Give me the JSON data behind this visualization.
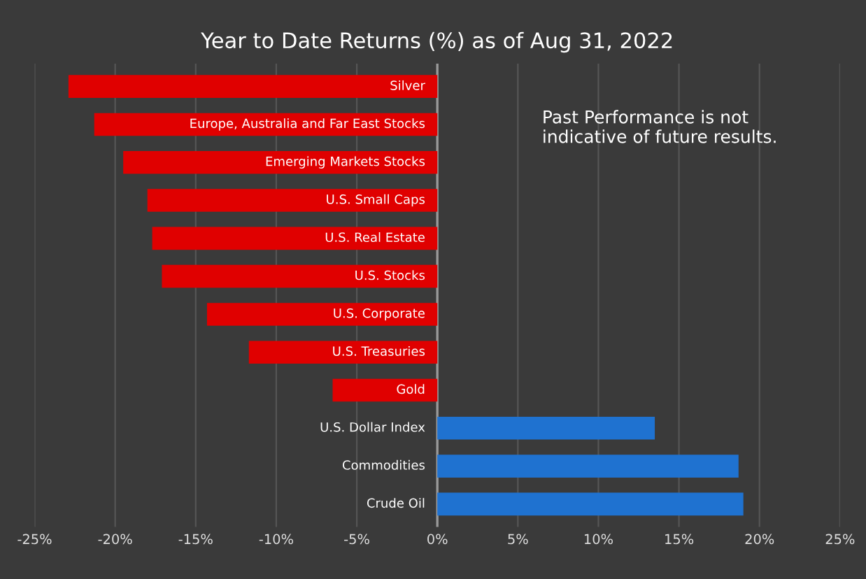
{
  "chart_data": {
    "type": "bar",
    "orientation": "horizontal",
    "title": "Year to Date Returns (%) as of Aug 31, 2022",
    "categories": [
      "Silver",
      "Europe, Australia and Far East Stocks",
      "Emerging Markets Stocks",
      "U.S. Small Caps",
      "U.S. Real Estate",
      "U.S. Stocks",
      "U.S. Corporate",
      "U.S. Treasuries",
      "Gold",
      "U.S. Dollar Index",
      "Commodities",
      "Crude Oil"
    ],
    "values": [
      -22.9,
      -21.3,
      -19.5,
      -18.0,
      -17.7,
      -17.1,
      -14.3,
      -11.7,
      -6.5,
      13.5,
      18.7,
      19.0
    ],
    "colors": [
      "#e00000",
      "#e00000",
      "#e00000",
      "#e00000",
      "#e00000",
      "#e00000",
      "#e00000",
      "#e00000",
      "#e00000",
      "#1f72d0",
      "#1f72d0",
      "#1f72d0"
    ],
    "xlim": [
      -25,
      25
    ],
    "xticks": [
      {
        "value": -25,
        "label": "-25%"
      },
      {
        "value": -20,
        "label": "-20%"
      },
      {
        "value": -15,
        "label": "-15%"
      },
      {
        "value": -10,
        "label": "-10%"
      },
      {
        "value": -5,
        "label": "-5%"
      },
      {
        "value": 0,
        "label": "0%"
      },
      {
        "value": 5,
        "label": "5%"
      },
      {
        "value": 10,
        "label": "10%"
      },
      {
        "value": 15,
        "label": "15%"
      },
      {
        "value": 20,
        "label": "20%"
      },
      {
        "value": 25,
        "label": "25%"
      }
    ],
    "grid": "x",
    "annotations": [
      "Past Performance is not\nindicative of future results."
    ]
  }
}
